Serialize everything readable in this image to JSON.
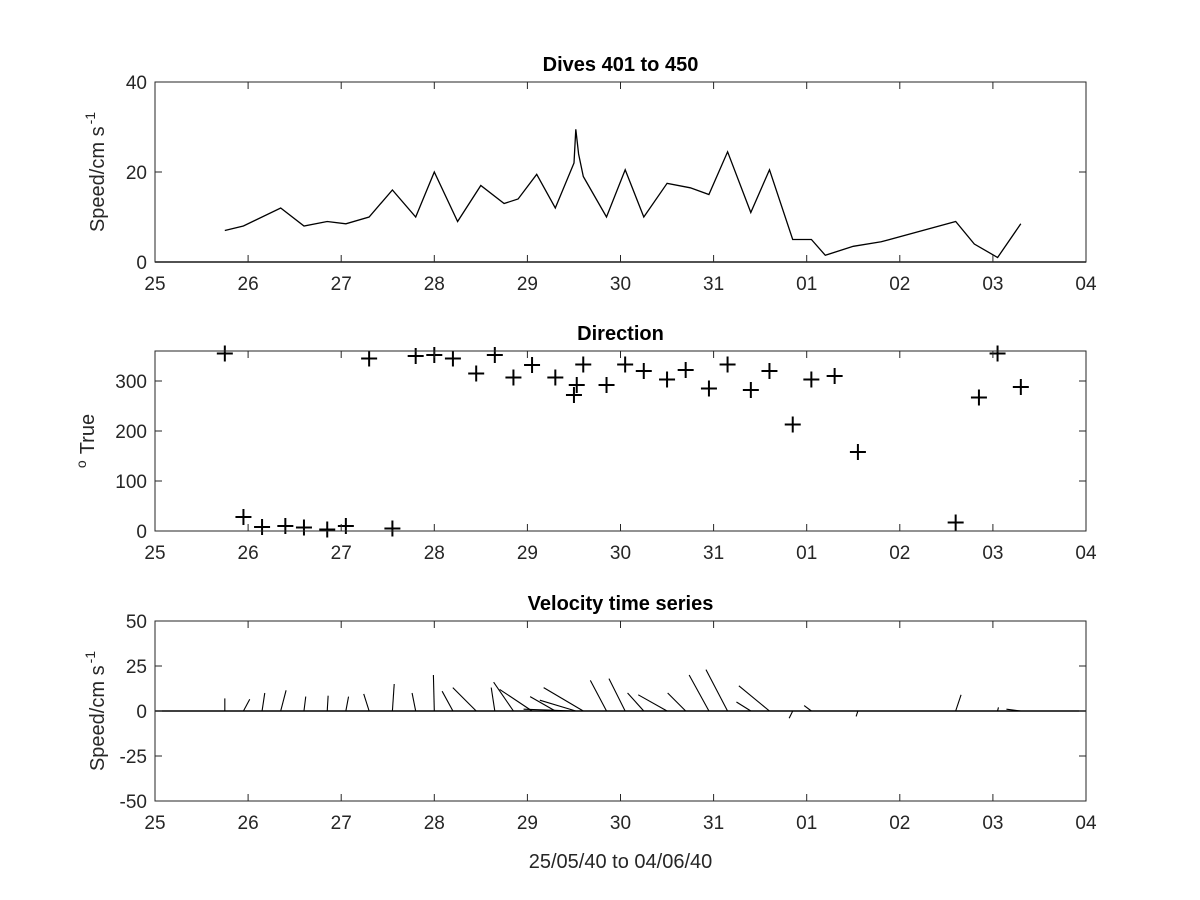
{
  "chart_data": [
    {
      "type": "line",
      "title": "Dives 401 to 450",
      "ylabel": "Speed/cm s",
      "ylabel_superscript": "-1",
      "xlim": [
        0,
        10
      ],
      "ylim": [
        0,
        40
      ],
      "xtick_labels": [
        "25",
        "26",
        "27",
        "28",
        "29",
        "30",
        "31",
        "01",
        "02",
        "03",
        "04"
      ],
      "ytick_labels": [
        "0",
        "20",
        "40"
      ],
      "ytick_values": [
        0,
        20,
        40
      ],
      "color": "#000000",
      "series": [
        {
          "x": [
            0.75,
            0.95,
            1.35,
            1.6,
            1.85,
            2.05,
            2.3,
            2.55,
            2.8,
            3.0,
            3.25,
            3.5,
            3.75,
            3.9,
            4.1,
            4.3,
            4.5,
            4.52,
            4.55,
            4.6,
            4.85,
            5.05,
            5.25,
            5.5,
            5.75,
            5.95,
            6.15,
            6.4,
            6.6,
            6.85,
            7.05,
            7.2,
            7.5,
            7.8,
            8.6,
            8.8,
            9.05,
            9.3
          ],
          "y": [
            7,
            8,
            12,
            8,
            9,
            8.5,
            10,
            16,
            10,
            20,
            9,
            17,
            13,
            14,
            19.5,
            12,
            22,
            29.5,
            24,
            19,
            10,
            20.5,
            10,
            17.5,
            16.5,
            15,
            24.5,
            11,
            20.5,
            5,
            5,
            1.5,
            3.5,
            4.5,
            9,
            4,
            1,
            8.5
          ]
        }
      ]
    },
    {
      "type": "scatter",
      "title": "Direction",
      "ylabel": "True",
      "ylabel_prefix": "o",
      "xlim": [
        0,
        10
      ],
      "ylim": [
        0,
        360
      ],
      "xtick_labels": [
        "25",
        "26",
        "27",
        "28",
        "29",
        "30",
        "31",
        "01",
        "02",
        "03",
        "04"
      ],
      "ytick_labels": [
        "0",
        "100",
        "200",
        "300"
      ],
      "ytick_values": [
        0,
        100,
        200,
        300
      ],
      "marker": "plus",
      "color": "#000000",
      "series": [
        {
          "x": [
            0.75,
            0.95,
            1.15,
            1.4,
            1.6,
            1.85,
            2.05,
            2.3,
            2.55,
            2.8,
            3.0,
            3.2,
            3.45,
            3.65,
            3.85,
            4.05,
            4.3,
            4.5,
            4.53,
            4.6,
            4.85,
            5.05,
            5.25,
            5.5,
            5.7,
            5.95,
            6.15,
            6.4,
            6.6,
            6.85,
            7.05,
            7.3,
            7.55,
            8.6,
            8.85,
            9.05,
            9.3
          ],
          "y": [
            355,
            28,
            8,
            10,
            7,
            3,
            10,
            345,
            5,
            350,
            352,
            345,
            315,
            352,
            307,
            332,
            307,
            272,
            292,
            333,
            292,
            333,
            320,
            303,
            322,
            285,
            333,
            282,
            320,
            213,
            303,
            310,
            158,
            17,
            267,
            355,
            288
          ]
        }
      ]
    },
    {
      "type": "quiver",
      "title": "Velocity time series",
      "ylabel": "Speed/cm s",
      "ylabel_superscript": "-1",
      "xlabel": "25/05/40 to 04/06/40",
      "xlim": [
        0,
        10
      ],
      "ylim": [
        -50,
        50
      ],
      "xtick_labels": [
        "25",
        "26",
        "27",
        "28",
        "29",
        "30",
        "31",
        "01",
        "02",
        "03",
        "04"
      ],
      "ytick_labels": [
        "-50",
        "-25",
        "0",
        "25",
        "50"
      ],
      "ytick_values": [
        -50,
        -25,
        0,
        25,
        50
      ],
      "color": "#000000",
      "sticks": [
        {
          "t": 0.75,
          "u": 0,
          "v": 7
        },
        {
          "t": 0.95,
          "u": 3.5,
          "v": 6.5
        },
        {
          "t": 1.15,
          "u": 1.5,
          "v": 10
        },
        {
          "t": 1.35,
          "u": 3,
          "v": 11.5
        },
        {
          "t": 1.6,
          "u": 1,
          "v": 8
        },
        {
          "t": 1.85,
          "u": 0.5,
          "v": 8.5
        },
        {
          "t": 2.05,
          "u": 1.5,
          "v": 8
        },
        {
          "t": 2.3,
          "u": -3,
          "v": 9.5
        },
        {
          "t": 2.55,
          "u": 1,
          "v": 15
        },
        {
          "t": 2.8,
          "u": -2,
          "v": 10
        },
        {
          "t": 3.0,
          "u": -0.5,
          "v": 20
        },
        {
          "t": 3.2,
          "u": -6,
          "v": 11
        },
        {
          "t": 3.45,
          "u": -13,
          "v": 13
        },
        {
          "t": 3.65,
          "u": -2,
          "v": 13
        },
        {
          "t": 3.85,
          "u": -11,
          "v": 16
        },
        {
          "t": 4.05,
          "u": -18,
          "v": 12
        },
        {
          "t": 4.3,
          "u": -14,
          "v": 8
        },
        {
          "t": 4.5,
          "u": -28,
          "v": 1
        },
        {
          "t": 4.52,
          "u": -20,
          "v": 6
        },
        {
          "t": 4.6,
          "u": -22,
          "v": 13
        },
        {
          "t": 4.85,
          "u": -9,
          "v": 17
        },
        {
          "t": 5.05,
          "u": -9,
          "v": 18
        },
        {
          "t": 5.25,
          "u": -9,
          "v": 10
        },
        {
          "t": 5.5,
          "u": -16,
          "v": 9
        },
        {
          "t": 5.7,
          "u": -10,
          "v": 10
        },
        {
          "t": 5.95,
          "u": -11,
          "v": 20
        },
        {
          "t": 6.15,
          "u": -12,
          "v": 23
        },
        {
          "t": 6.4,
          "u": -8,
          "v": 5
        },
        {
          "t": 6.6,
          "u": -17,
          "v": 14
        },
        {
          "t": 6.85,
          "u": -2,
          "v": -4
        },
        {
          "t": 7.05,
          "u": -4,
          "v": 3
        },
        {
          "t": 7.55,
          "u": -1,
          "v": -3
        },
        {
          "t": 8.6,
          "u": 3,
          "v": 9
        },
        {
          "t": 9.05,
          "u": 0.5,
          "v": 2
        },
        {
          "t": 9.3,
          "u": -8,
          "v": 1
        }
      ]
    }
  ]
}
